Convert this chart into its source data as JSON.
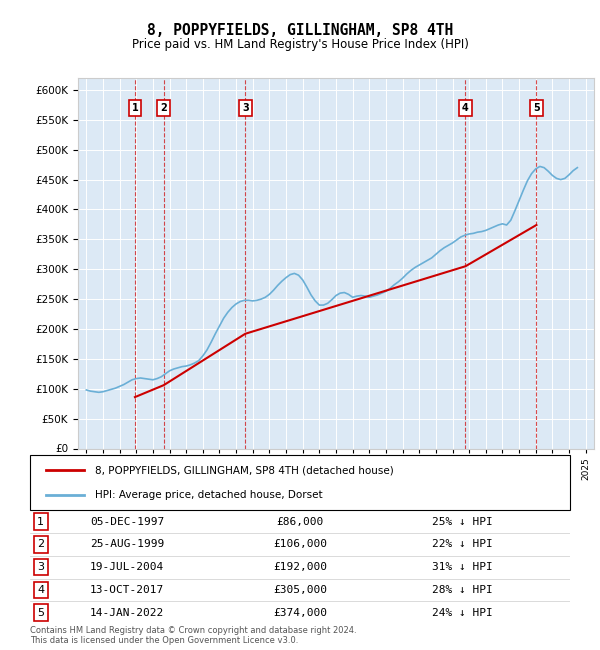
{
  "title": "8, POPPYFIELDS, GILLINGHAM, SP8 4TH",
  "subtitle": "Price paid vs. HM Land Registry's House Price Index (HPI)",
  "background_color": "#dce9f5",
  "plot_bg_color": "#dce9f5",
  "ylim": [
    0,
    620000
  ],
  "yticks": [
    0,
    50000,
    100000,
    150000,
    200000,
    250000,
    300000,
    350000,
    400000,
    450000,
    500000,
    550000,
    600000
  ],
  "xlim_start": 1994.5,
  "xlim_end": 2025.5,
  "hpi_color": "#6aafd6",
  "price_color": "#cc0000",
  "legend_label_price": "8, POPPYFIELDS, GILLINGHAM, SP8 4TH (detached house)",
  "legend_label_hpi": "HPI: Average price, detached house, Dorset",
  "transactions": [
    {
      "num": 1,
      "date": "05-DEC-1997",
      "year": 1997.92,
      "price": 86000,
      "pct": "25%",
      "dir": "↓"
    },
    {
      "num": 2,
      "date": "25-AUG-1999",
      "year": 1999.65,
      "price": 106000,
      "pct": "22%",
      "dir": "↓"
    },
    {
      "num": 3,
      "date": "19-JUL-2004",
      "year": 2004.55,
      "price": 192000,
      "pct": "31%",
      "dir": "↓"
    },
    {
      "num": 4,
      "date": "13-OCT-2017",
      "year": 2017.78,
      "price": 305000,
      "pct": "28%",
      "dir": "↓"
    },
    {
      "num": 5,
      "date": "14-JAN-2022",
      "year": 2022.04,
      "price": 374000,
      "pct": "24%",
      "dir": "↓"
    }
  ],
  "footer": "Contains HM Land Registry data © Crown copyright and database right 2024.\nThis data is licensed under the Open Government Licence v3.0.",
  "hpi_data": {
    "years": [
      1995.0,
      1995.25,
      1995.5,
      1995.75,
      1996.0,
      1996.25,
      1996.5,
      1996.75,
      1997.0,
      1997.25,
      1997.5,
      1997.75,
      1998.0,
      1998.25,
      1998.5,
      1998.75,
      1999.0,
      1999.25,
      1999.5,
      1999.75,
      2000.0,
      2000.25,
      2000.5,
      2000.75,
      2001.0,
      2001.25,
      2001.5,
      2001.75,
      2002.0,
      2002.25,
      2002.5,
      2002.75,
      2003.0,
      2003.25,
      2003.5,
      2003.75,
      2004.0,
      2004.25,
      2004.5,
      2004.75,
      2005.0,
      2005.25,
      2005.5,
      2005.75,
      2006.0,
      2006.25,
      2006.5,
      2006.75,
      2007.0,
      2007.25,
      2007.5,
      2007.75,
      2008.0,
      2008.25,
      2008.5,
      2008.75,
      2009.0,
      2009.25,
      2009.5,
      2009.75,
      2010.0,
      2010.25,
      2010.5,
      2010.75,
      2011.0,
      2011.25,
      2011.5,
      2011.75,
      2012.0,
      2012.25,
      2012.5,
      2012.75,
      2013.0,
      2013.25,
      2013.5,
      2013.75,
      2014.0,
      2014.25,
      2014.5,
      2014.75,
      2015.0,
      2015.25,
      2015.5,
      2015.75,
      2016.0,
      2016.25,
      2016.5,
      2016.75,
      2017.0,
      2017.25,
      2017.5,
      2017.75,
      2018.0,
      2018.25,
      2018.5,
      2018.75,
      2019.0,
      2019.25,
      2019.5,
      2019.75,
      2020.0,
      2020.25,
      2020.5,
      2020.75,
      2021.0,
      2021.25,
      2021.5,
      2021.75,
      2022.0,
      2022.25,
      2022.5,
      2022.75,
      2023.0,
      2023.25,
      2023.5,
      2023.75,
      2024.0,
      2024.25,
      2024.5
    ],
    "values": [
      98000,
      96000,
      95000,
      94000,
      95000,
      97000,
      99000,
      101000,
      104000,
      107000,
      111000,
      115000,
      117000,
      118000,
      117000,
      116000,
      115000,
      117000,
      120000,
      125000,
      130000,
      133000,
      135000,
      137000,
      138000,
      140000,
      143000,
      147000,
      155000,
      165000,
      178000,
      192000,
      205000,
      218000,
      228000,
      236000,
      242000,
      246000,
      248000,
      248000,
      247000,
      248000,
      250000,
      253000,
      258000,
      265000,
      273000,
      280000,
      286000,
      291000,
      293000,
      290000,
      282000,
      270000,
      257000,
      247000,
      240000,
      240000,
      243000,
      249000,
      256000,
      260000,
      261000,
      258000,
      253000,
      255000,
      256000,
      255000,
      253000,
      255000,
      257000,
      260000,
      263000,
      268000,
      274000,
      279000,
      285000,
      292000,
      298000,
      303000,
      307000,
      311000,
      315000,
      319000,
      325000,
      331000,
      336000,
      340000,
      344000,
      349000,
      354000,
      357000,
      359000,
      360000,
      362000,
      363000,
      365000,
      368000,
      371000,
      374000,
      376000,
      374000,
      382000,
      398000,
      415000,
      432000,
      448000,
      460000,
      468000,
      472000,
      470000,
      464000,
      457000,
      452000,
      450000,
      452000,
      458000,
      465000,
      470000
    ]
  },
  "price_line_data": {
    "years": [
      1997.92,
      1999.65,
      2004.55,
      2017.78,
      2022.04
    ],
    "prices": [
      86000,
      106000,
      192000,
      305000,
      374000
    ]
  }
}
